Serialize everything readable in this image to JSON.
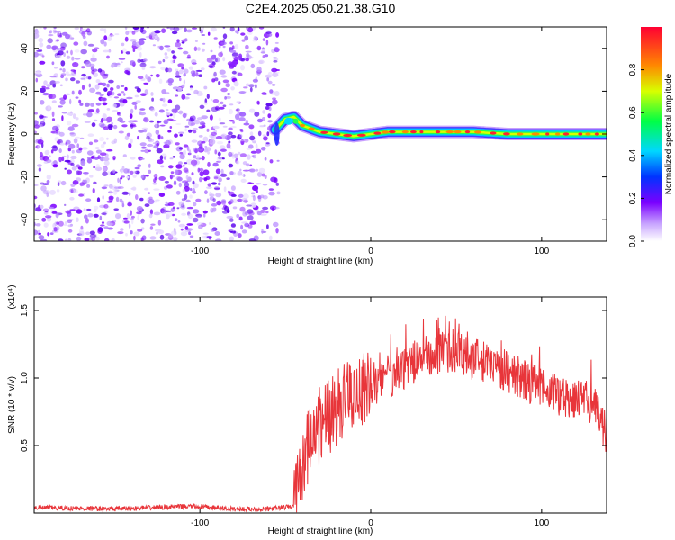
{
  "chart_data": [
    {
      "type": "heatmap",
      "title": "C2E4.2025.050.21.38.G10",
      "xlabel": "Height of straight line (km)",
      "ylabel": "Frequency (Hz)",
      "xlim": [
        -197,
        138
      ],
      "ylim": [
        -50,
        50
      ],
      "xticks": [
        -100,
        0,
        100
      ],
      "yticks": [
        -40,
        -20,
        0,
        20,
        40
      ],
      "colorbar": {
        "label": "Normalized spectral amplitude",
        "ticks": [
          0.0,
          0.2,
          0.4,
          0.6,
          0.8
        ],
        "range": [
          0,
          1
        ],
        "colormap": [
          "#ffffff",
          "#7a00ff",
          "#0033ff",
          "#00d7ff",
          "#00ff44",
          "#d8ff00",
          "#ff8800",
          "#ff0033"
        ]
      },
      "noise_region_x": [
        -197,
        -54
      ],
      "signal_ridge": {
        "x": [
          -56,
          -50,
          -45,
          -40,
          -30,
          -20,
          -10,
          0,
          10,
          20,
          40,
          60,
          80,
          100,
          120,
          138
        ],
        "y": [
          2,
          7,
          8,
          4,
          1,
          0,
          -1,
          0,
          1,
          1,
          1,
          1,
          0,
          0,
          0,
          0
        ]
      },
      "noise_color": "#7a00ff"
    },
    {
      "type": "line",
      "xlabel": "Height of straight line (km)",
      "ylabel": "SNR (10 * v/v)",
      "y_multiplier": "(x10⁴)",
      "xlim": [
        -197,
        138
      ],
      "ylim": [
        0,
        1.6
      ],
      "xticks": [
        -100,
        0,
        100
      ],
      "yticks": [
        0.5,
        1.0,
        1.5
      ],
      "ytick_labels": [
        "0.5",
        "1.0",
        "1.5"
      ],
      "line_color": "#e8353a",
      "series": [
        {
          "x": [
            -197,
            -150,
            -105,
            -80,
            -60,
            -45,
            -40,
            -35,
            -30,
            -25,
            -20,
            -15,
            -10,
            -5,
            0,
            10,
            20,
            30,
            40,
            50,
            60,
            70,
            80,
            90,
            100,
            110,
            120,
            130,
            138
          ],
          "y": [
            0.04,
            0.03,
            0.05,
            0.03,
            0.03,
            0.05,
            0.35,
            0.55,
            0.62,
            0.7,
            0.78,
            0.85,
            0.88,
            0.9,
            0.95,
            1.0,
            1.08,
            1.15,
            1.18,
            1.2,
            1.15,
            1.1,
            1.05,
            0.98,
            0.92,
            0.88,
            0.85,
            0.8,
            0.6
          ]
        }
      ]
    }
  ]
}
